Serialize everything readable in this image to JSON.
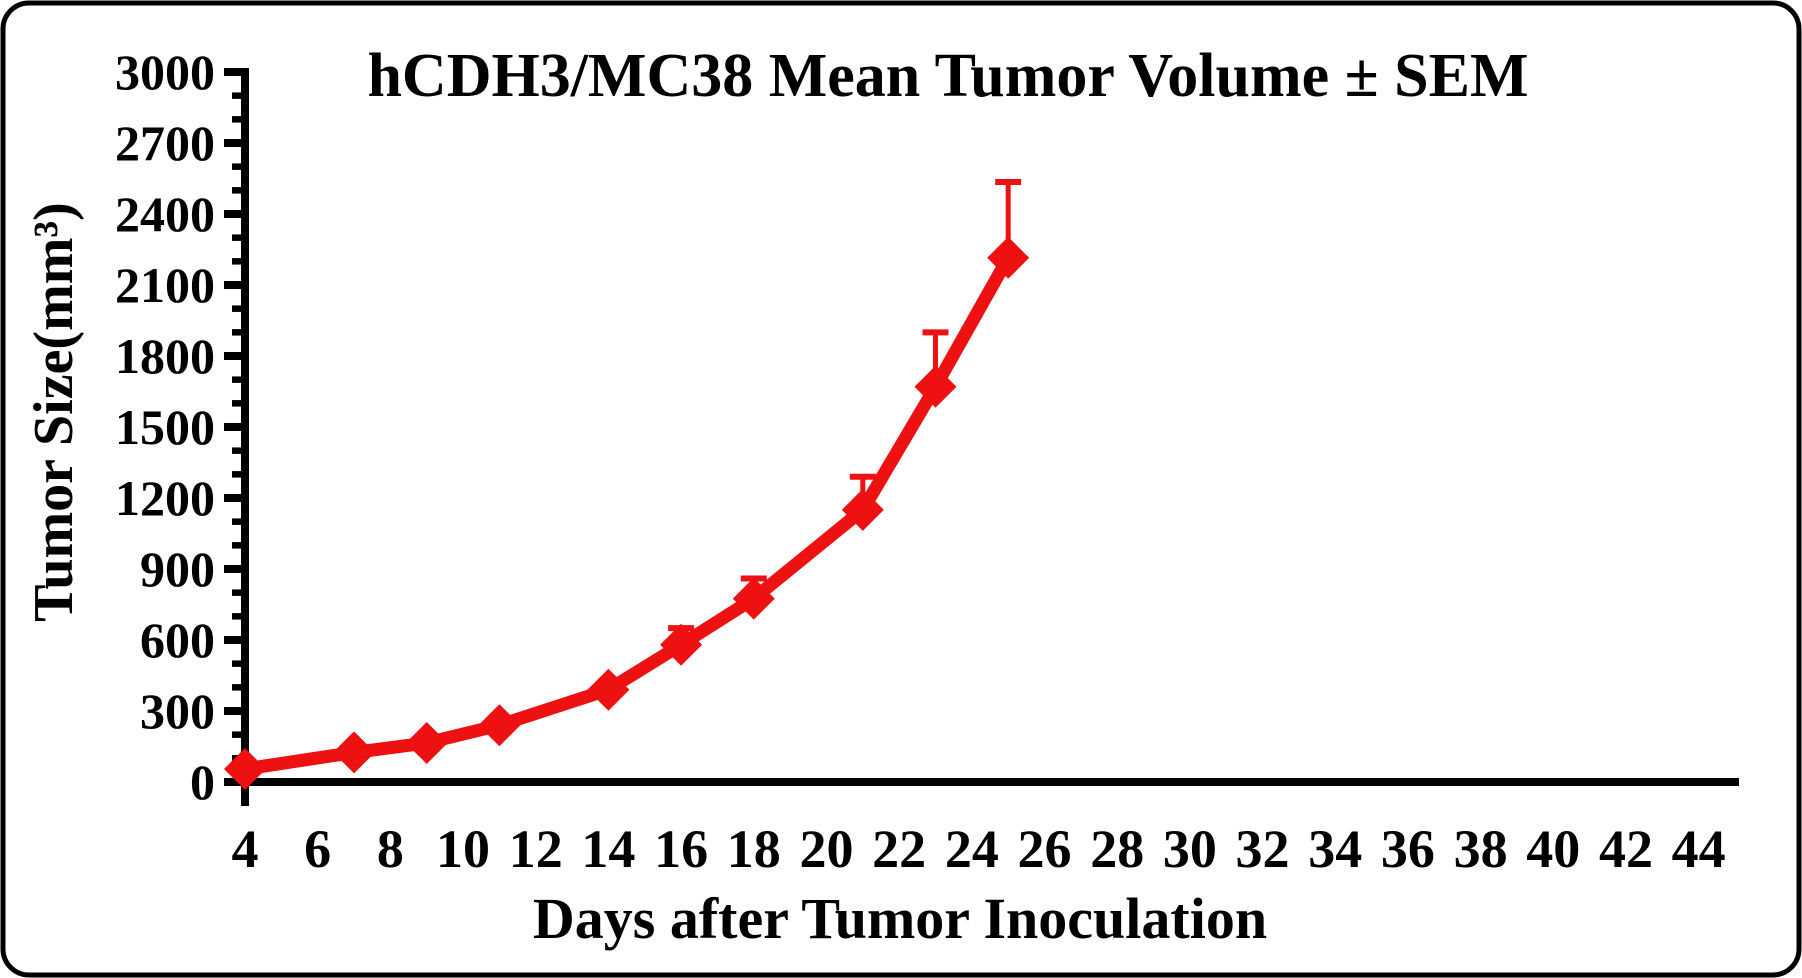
{
  "frame": {
    "background_color": "#ffffff",
    "border_color": "#000000",
    "axis_color": "#000000"
  },
  "chart_data": {
    "type": "line",
    "title": "hCDH3/MC38 Mean Tumor Volume ± SEM",
    "xlabel": "Days after Tumor Inoculation",
    "ylabel": "Tumor Size(mm³)",
    "grid": "off",
    "legend": "none",
    "x_axis": {
      "min": 4,
      "max": 45,
      "major_tick_step": 2,
      "minor_tick_step": 1,
      "major_ticks": [
        4,
        6,
        8,
        10,
        12,
        14,
        16,
        18,
        20,
        22,
        24,
        26,
        28,
        30,
        32,
        34,
        36,
        38,
        40,
        42,
        44
      ]
    },
    "y_axis": {
      "min": 0,
      "max": 3000,
      "major_tick_step": 300,
      "minor_tick_step": 100,
      "major_ticks": [
        0,
        300,
        600,
        900,
        1200,
        1500,
        1800,
        2100,
        2400,
        2700,
        3000
      ]
    },
    "series": [
      {
        "name": "hCDH3/MC38 mean tumor volume",
        "color": "#ee1111",
        "marker": "diamond",
        "error_bar_type": "upper SEM",
        "points": [
          {
            "day": 4,
            "volume": 55,
            "sem": 0
          },
          {
            "day": 7,
            "volume": 125,
            "sem": 0
          },
          {
            "day": 9,
            "volume": 165,
            "sem": 0
          },
          {
            "day": 11,
            "volume": 240,
            "sem": 0
          },
          {
            "day": 14,
            "volume": 390,
            "sem": 0
          },
          {
            "day": 16,
            "volume": 580,
            "sem": 70
          },
          {
            "day": 18,
            "volume": 775,
            "sem": 85
          },
          {
            "day": 21,
            "volume": 1150,
            "sem": 140
          },
          {
            "day": 23,
            "volume": 1670,
            "sem": 230
          },
          {
            "day": 25,
            "volume": 2215,
            "sem": 320
          }
        ]
      }
    ]
  }
}
